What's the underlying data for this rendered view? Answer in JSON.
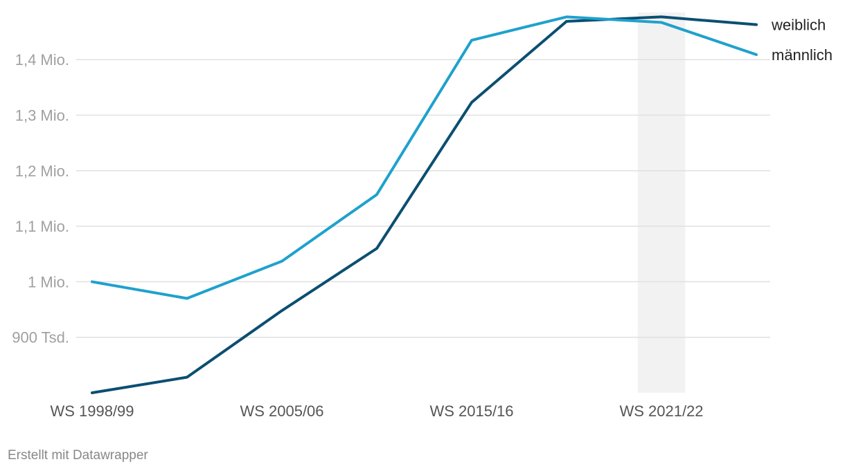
{
  "chart_data": {
    "type": "line",
    "categories": [
      "WS 1998/99",
      "",
      "WS 2005/06",
      "",
      "WS 2015/16",
      "",
      "WS 2021/22",
      ""
    ],
    "x_index": [
      0,
      1,
      2,
      3,
      4,
      5,
      6,
      7
    ],
    "x_tick_labels": [
      {
        "index": 0,
        "label": "WS 1998/99"
      },
      {
        "index": 2,
        "label": "WS 2005/06"
      },
      {
        "index": 4,
        "label": "WS 2015/16"
      },
      {
        "index": 6,
        "label": "WS 2021/22"
      }
    ],
    "series": [
      {
        "name": "weiblich",
        "color": "#0b4f71",
        "values": [
          800000,
          828000,
          948000,
          1060000,
          1323000,
          1469000,
          1477000,
          1463000
        ]
      },
      {
        "name": "männlich",
        "color": "#1fa1cd",
        "values": [
          1000000,
          970000,
          1037000,
          1157000,
          1435000,
          1477000,
          1467000,
          1409000
        ]
      }
    ],
    "y_ticks": [
      {
        "value": 900000,
        "label": "900 Tsd."
      },
      {
        "value": 1000000,
        "label": "1 Mio."
      },
      {
        "value": 1100000,
        "label": "1,1 Mio."
      },
      {
        "value": 1200000,
        "label": "1,2 Mio."
      },
      {
        "value": 1300000,
        "label": "1,3 Mio."
      },
      {
        "value": 1400000,
        "label": "1,4 Mio."
      }
    ],
    "ylim": [
      800000,
      1480000
    ],
    "highlight_range": [
      5.75,
      6.25
    ],
    "highlight_color": "#f2f2f2",
    "grid": true,
    "legend": "inline-right-end"
  },
  "footer": {
    "credit": "Erstellt mit Datawrapper"
  }
}
